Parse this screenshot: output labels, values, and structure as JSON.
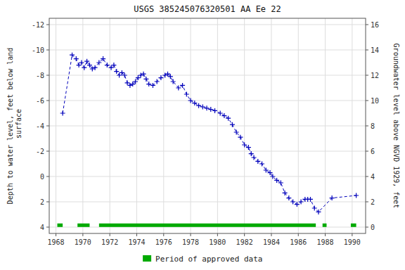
{
  "chart_data": {
    "type": "line",
    "title": "USGS 385245076320501 AA Ee  22",
    "ylabel": "Depth to water level, feet below land\n surface",
    "y2label": "Groundwater level above NGVD 1929, feet",
    "xlim": [
      1967.5,
      1991.0
    ],
    "xticks": [
      1968,
      1970,
      1972,
      1974,
      1976,
      1978,
      1980,
      1982,
      1984,
      1986,
      1988,
      1990
    ],
    "ylim": [
      4.5,
      -12.5
    ],
    "yticks": [
      4,
      2,
      0,
      -2,
      -4,
      -6,
      -8,
      -10,
      -12
    ],
    "y2lim": [
      -0.5,
      16.5
    ],
    "y2ticks": [
      0,
      2,
      4,
      6,
      8,
      10,
      12,
      14,
      16
    ],
    "grid": true,
    "series": [
      {
        "type": "line",
        "color": "#0000bb",
        "marker": "plus",
        "line_style": "dashed",
        "x": [
          1968.5,
          1969.2,
          1969.5,
          1969.7,
          1969.9,
          1970.1,
          1970.3,
          1970.5,
          1970.7,
          1970.9,
          1971.2,
          1971.5,
          1971.8,
          1972.1,
          1972.3,
          1972.5,
          1972.7,
          1972.9,
          1973.1,
          1973.3,
          1973.5,
          1973.7,
          1973.9,
          1974.1,
          1974.3,
          1974.5,
          1974.7,
          1974.9,
          1975.2,
          1975.5,
          1975.8,
          1976.1,
          1976.3,
          1976.5,
          1976.7,
          1977.1,
          1977.4,
          1977.7,
          1978.0,
          1978.3,
          1978.6,
          1978.9,
          1979.2,
          1979.5,
          1979.8,
          1980.2,
          1980.5,
          1980.8,
          1981.1,
          1981.4,
          1981.7,
          1982.0,
          1982.3,
          1982.5,
          1982.7,
          1983.0,
          1983.3,
          1983.6,
          1983.9,
          1984.1,
          1984.4,
          1984.7,
          1985.0,
          1985.3,
          1985.6,
          1985.9,
          1986.2,
          1986.5,
          1986.7,
          1986.9,
          1987.2,
          1987.5,
          1988.5,
          1990.3
        ],
        "values": [
          -5.0,
          -9.6,
          -9.3,
          -8.8,
          -9.0,
          -8.6,
          -9.1,
          -8.8,
          -8.5,
          -8.6,
          -9.0,
          -9.3,
          -8.8,
          -8.6,
          -8.8,
          -8.3,
          -8.0,
          -8.2,
          -8.0,
          -7.4,
          -7.2,
          -7.3,
          -7.5,
          -7.8,
          -8.0,
          -8.1,
          -7.7,
          -7.3,
          -7.2,
          -7.5,
          -7.8,
          -8.0,
          -8.1,
          -7.9,
          -7.5,
          -7.0,
          -7.2,
          -6.5,
          -6.0,
          -5.8,
          -5.6,
          -5.5,
          -5.4,
          -5.3,
          -5.2,
          -5.0,
          -4.8,
          -4.6,
          -4.1,
          -3.5,
          -3.1,
          -2.5,
          -2.3,
          -1.8,
          -1.5,
          -1.2,
          -1.0,
          -0.5,
          -0.3,
          0.0,
          0.3,
          0.5,
          1.3,
          1.7,
          2.0,
          2.2,
          2.0,
          1.8,
          1.8,
          1.8,
          2.5,
          2.8,
          1.7,
          1.5
        ]
      },
      {
        "type": "span",
        "name": "Period of approved data",
        "color": "#00aa00",
        "y": 3.85,
        "x_start": [
          1968.1,
          1969.6,
          1971.2,
          1987.8,
          1989.9
        ],
        "x_end": [
          1968.5,
          1970.5,
          1987.3,
          1988.1,
          1990.3
        ]
      }
    ]
  }
}
